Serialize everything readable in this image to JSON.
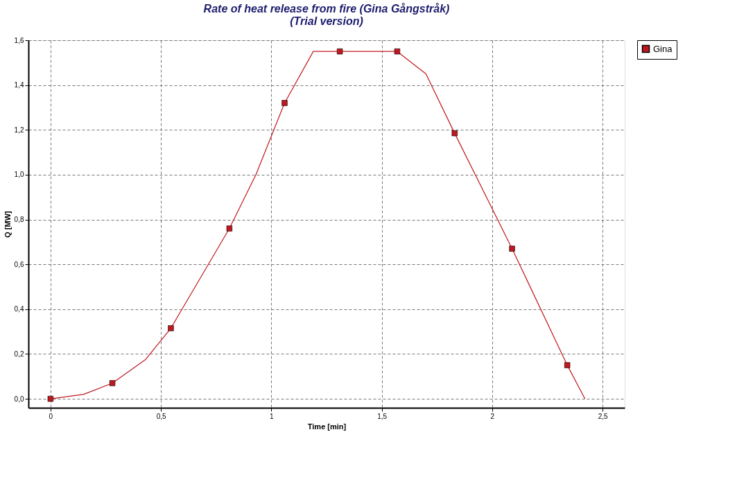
{
  "chart_data": {
    "type": "line",
    "title": [
      "Rate of heat release from fire   (Gina Gångstråk)",
      "(Trial version)"
    ],
    "xlabel": "Time [min]",
    "ylabel": "Q [MW]",
    "series": [
      {
        "color": "#c0181e",
        "marker": "none",
        "x": [
          0,
          0.15,
          0.28,
          0.43,
          0.545,
          0.81,
          0.93,
          1.06,
          1.19,
          1.57,
          1.7,
          1.83,
          2.09,
          2.34,
          2.42
        ],
        "values": [
          0,
          0.02,
          0.07,
          0.175,
          0.315,
          0.76,
          1.0,
          1.32,
          1.55,
          1.55,
          1.45,
          1.185,
          0.67,
          0.15,
          0
        ]
      },
      {
        "type": "scatter",
        "name": "Gina",
        "color": "#c0181e",
        "marker": "square",
        "x": [
          0,
          0.28,
          0.545,
          0.81,
          1.06,
          1.31,
          1.57,
          1.83,
          2.09,
          2.34
        ],
        "values": [
          0,
          0.07,
          0.315,
          0.76,
          1.32,
          1.55,
          1.55,
          1.185,
          0.67,
          0.15
        ]
      }
    ],
    "xlim": [
      -0.1,
      2.6
    ],
    "ylim": [
      -0.04,
      1.6
    ],
    "xticks": [
      0,
      {
        "value": 0.5,
        "label": "0,5"
      },
      1,
      {
        "value": 1.5,
        "label": "1,5"
      },
      2,
      {
        "value": 2.5,
        "label": "2,5"
      }
    ],
    "yticks": [
      {
        "value": 0,
        "label": "0,0"
      },
      {
        "value": 0.2,
        "label": "0,2"
      },
      {
        "value": 0.4,
        "label": "0,4"
      },
      {
        "value": 0.6,
        "label": "0,6"
      },
      {
        "value": 0.8,
        "label": "0,8"
      },
      {
        "value": 1.0,
        "label": "1,0"
      },
      {
        "value": 1.2,
        "label": "1,2"
      },
      {
        "value": 1.4,
        "label": "1,4"
      },
      {
        "value": 1.6,
        "label": "1,6"
      }
    ],
    "grid": true,
    "legend": "top right"
  }
}
